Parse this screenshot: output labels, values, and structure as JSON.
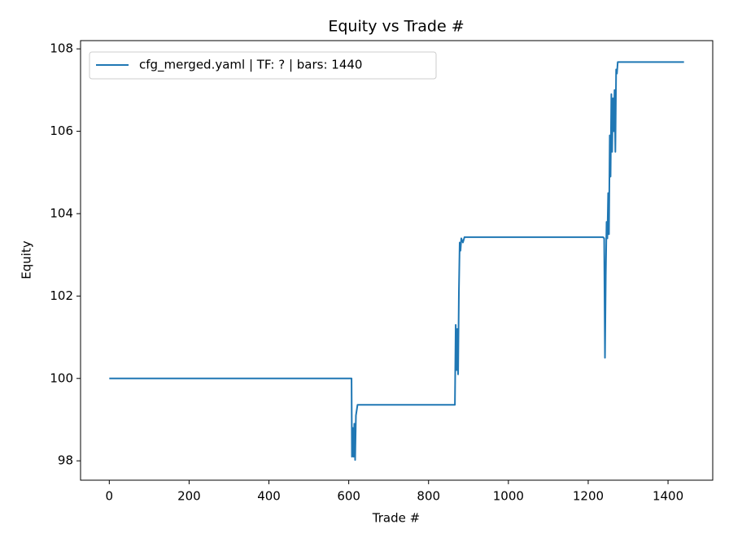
{
  "chart_data": {
    "type": "line",
    "title": "Equity vs Trade #",
    "x_label": "Trade #",
    "y_label": "Equity",
    "x": [
      0,
      607,
      608,
      610,
      612,
      614,
      616,
      618,
      622,
      866,
      868,
      870,
      872,
      874,
      876,
      878,
      880,
      882,
      886,
      890,
      1237,
      1240,
      1242,
      1244,
      1246,
      1248,
      1250,
      1252,
      1254,
      1256,
      1258,
      1260,
      1262,
      1264,
      1266,
      1268,
      1270,
      1272,
      1274,
      1440
    ],
    "series": [
      {
        "name": "cfg_merged.yaml | TF: ? | bars: 1440",
        "color": "#1f77b4",
        "values": [
          100,
          100,
          98.1,
          98.8,
          98.1,
          98.9,
          98.02,
          99.1,
          99.36,
          99.36,
          101.3,
          100.2,
          101.2,
          100.1,
          102.1,
          103.3,
          103.1,
          103.4,
          103.3,
          103.43,
          103.43,
          103.4,
          100.5,
          102.5,
          103.8,
          103.4,
          104.5,
          103.5,
          105.9,
          104.9,
          106.9,
          105.5,
          106.8,
          106.0,
          107.0,
          105.5,
          107.5,
          107.4,
          107.68,
          107.68
        ]
      }
    ],
    "xlim": [
      -72,
      1512
    ],
    "ylim": [
      97.53,
      108.2
    ],
    "xticks": [
      0,
      200,
      400,
      600,
      800,
      1000,
      1200,
      1400
    ],
    "yticks": [
      98,
      100,
      102,
      104,
      106,
      108
    ],
    "legend": "upper left"
  }
}
